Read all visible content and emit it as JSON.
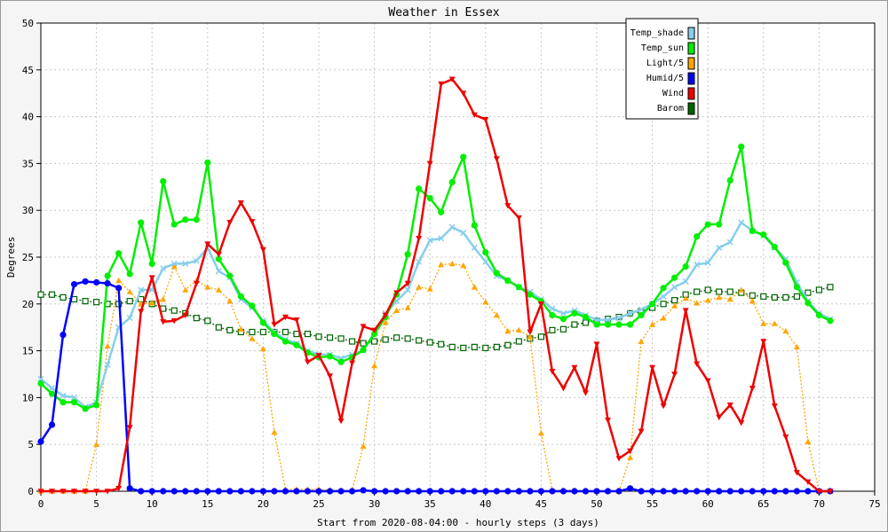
{
  "chart_data": {
    "type": "line",
    "title": "Weather in Essex",
    "xlabel": "Start from 2020-08-04:00 - hourly steps (3 days)",
    "ylabel": "Degrees",
    "xlim": [
      0,
      75
    ],
    "ylim": [
      0,
      50
    ],
    "x_ticks": [
      0,
      5,
      10,
      15,
      20,
      25,
      30,
      35,
      40,
      45,
      50,
      55,
      60,
      65,
      70,
      75
    ],
    "y_ticks": [
      0,
      5,
      10,
      15,
      20,
      25,
      30,
      35,
      40,
      45,
      50
    ],
    "grid": true,
    "legend_position": "top-right",
    "x": [
      0,
      1,
      2,
      3,
      4,
      5,
      6,
      7,
      8,
      9,
      10,
      11,
      12,
      13,
      14,
      15,
      16,
      17,
      18,
      19,
      20,
      21,
      22,
      23,
      24,
      25,
      26,
      27,
      28,
      29,
      30,
      31,
      32,
      33,
      34,
      35,
      36,
      37,
      38,
      39,
      40,
      41,
      42,
      43,
      44,
      45,
      46,
      47,
      48,
      49,
      50,
      51,
      52,
      53,
      54,
      55,
      56,
      57,
      58,
      59,
      60,
      61,
      62,
      63,
      64,
      65,
      66,
      67,
      68,
      69,
      70,
      71
    ],
    "series": [
      {
        "name": "Temp_shade",
        "color": "#87ceeb",
        "marker": "x",
        "values": [
          12,
          11,
          10.2,
          10,
          9,
          9.5,
          13.5,
          17.5,
          18.5,
          21.5,
          21.5,
          23.8,
          24.3,
          24.3,
          24.6,
          26,
          23.5,
          22.8,
          20.5,
          19.6,
          18.2,
          17,
          16.2,
          15.8,
          15,
          14.6,
          14.6,
          14.2,
          14.6,
          15,
          17,
          19,
          20.3,
          21.5,
          24.5,
          26.8,
          27,
          28.2,
          27.6,
          26,
          24.5,
          23,
          22.5,
          21.8,
          21.3,
          20.5,
          19.5,
          19,
          19.3,
          18.8,
          18.3,
          18.3,
          18.5,
          19,
          19.4,
          20,
          20.8,
          21.8,
          22.4,
          24.2,
          24.4,
          26,
          26.6,
          28.7,
          27.8,
          27.3,
          26,
          24.8,
          22.3,
          20.3,
          19,
          18.4
        ]
      },
      {
        "name": "Temp_sun",
        "color": "#00ee00",
        "marker": "circle",
        "values": [
          11.5,
          10.4,
          9.5,
          9.5,
          8.8,
          9.2,
          23,
          25.4,
          23.2,
          28.7,
          24.3,
          33.1,
          28.5,
          29,
          29,
          35.1,
          24.8,
          23,
          20.8,
          19.8,
          18,
          16.8,
          16,
          15.6,
          14.8,
          14.3,
          14.4,
          13.8,
          14.3,
          15.1,
          16.8,
          18.6,
          21,
          25.3,
          32.3,
          31.3,
          29.8,
          33,
          35.7,
          28.4,
          25.5,
          23.3,
          22.5,
          21.8,
          21,
          20.3,
          18.8,
          18.4,
          19,
          18.6,
          17.8,
          17.8,
          17.8,
          17.8,
          18.8,
          20,
          21.7,
          22.8,
          24,
          27.2,
          28.5,
          28.5,
          33.2,
          36.8,
          27.8,
          27.4,
          26.1,
          24.4,
          21.8,
          20.1,
          18.8,
          18.2
        ]
      },
      {
        "name": "Light/5",
        "color": "#ffa500",
        "marker": "triangle-up",
        "values": [
          0,
          0,
          0,
          0,
          0,
          5,
          15.5,
          22.5,
          21.3,
          20,
          20.1,
          20.5,
          24,
          21.5,
          22.5,
          21.8,
          21.5,
          20.3,
          17.3,
          16.3,
          15.2,
          6.3,
          0.2,
          0.2,
          0.2,
          0.2,
          0.1,
          0.1,
          0.1,
          4.8,
          13.4,
          18,
          19.3,
          19.6,
          21.8,
          21.6,
          24.2,
          24.3,
          24.1,
          21.8,
          20.2,
          18.8,
          17.1,
          17.2,
          16.5,
          6.2,
          0.1,
          0.1,
          0.1,
          0,
          0,
          0,
          0,
          3.6,
          16,
          17.8,
          18.5,
          19.8,
          20.6,
          20.1,
          20.4,
          20.7,
          20.5,
          21.5,
          20.3,
          17.9,
          17.9,
          17.1,
          15.4,
          5.3,
          0,
          0
        ]
      },
      {
        "name": "Humid/5",
        "color": "#0000ff",
        "marker": "circle",
        "values": [
          5.3,
          7.1,
          16.7,
          22.1,
          22.4,
          22.3,
          22.2,
          21.7,
          0.3,
          0,
          0,
          0,
          0,
          0,
          0,
          0,
          0,
          0,
          0,
          0,
          0,
          0,
          0,
          0,
          0,
          0,
          0,
          0,
          0,
          0.1,
          0,
          0,
          0,
          0,
          0,
          0,
          0,
          0,
          0,
          0,
          0,
          0,
          0,
          0,
          0,
          0,
          0,
          0,
          0,
          0,
          0,
          0,
          0,
          0.3,
          0,
          0,
          0,
          0,
          0,
          0,
          0,
          0,
          0,
          0,
          0,
          0,
          0,
          0,
          0,
          0,
          0,
          0
        ]
      },
      {
        "name": "Wind",
        "color": "#ee0000",
        "marker": "triangle-down",
        "values": [
          0,
          0,
          0,
          0,
          0,
          0,
          0,
          0.3,
          6.8,
          19.2,
          22.8,
          18.1,
          18.2,
          18.8,
          22.2,
          26.4,
          25.3,
          28.7,
          30.8,
          28.8,
          25.8,
          17.8,
          18.6,
          18.3,
          13.8,
          14.5,
          12.3,
          7.5,
          13.7,
          17.6,
          17.2,
          18.8,
          21.2,
          22.2,
          27,
          35,
          43.5,
          44,
          42.5,
          40.2,
          39.7,
          35.5,
          30.5,
          29.2,
          17,
          20,
          12.8,
          11,
          13.2,
          10.5,
          15.7,
          7.6,
          3.5,
          4.3,
          6.4,
          13.2,
          9.1,
          12.5,
          19.3,
          13.6,
          11.8,
          7.9,
          9.2,
          7.3,
          11,
          16,
          9.1,
          5.8,
          2,
          1,
          0,
          0
        ]
      },
      {
        "name": "Barom",
        "color": "#006400",
        "marker": "square",
        "values": [
          21,
          21,
          20.7,
          20.5,
          20.3,
          20.2,
          20,
          20,
          20.3,
          20.5,
          20,
          19.5,
          19.3,
          19,
          18.5,
          18.2,
          17.5,
          17.2,
          17,
          17,
          17,
          17,
          17,
          16.8,
          16.8,
          16.5,
          16.4,
          16.3,
          16,
          15.8,
          16,
          16.2,
          16.4,
          16.3,
          16.1,
          15.9,
          15.7,
          15.4,
          15.3,
          15.4,
          15.3,
          15.4,
          15.6,
          16,
          16.3,
          16.5,
          17.2,
          17.3,
          17.8,
          18,
          18.2,
          18.4,
          18.6,
          19,
          19.2,
          19.6,
          20,
          20.4,
          21,
          21.3,
          21.5,
          21.3,
          21.3,
          21.2,
          20.9,
          20.8,
          20.7,
          20.7,
          20.8,
          21.2,
          21.5,
          21.8
        ]
      }
    ]
  }
}
